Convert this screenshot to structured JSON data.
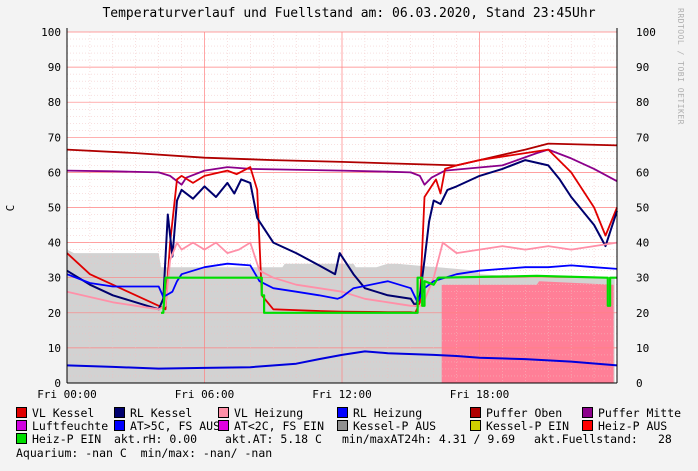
{
  "title": "Temperaturverlauf und Fuellstand am: 06.03.2020, Stand 23:45Uhr",
  "watermark": "RRDTOOL / TOBI OETIKER",
  "legend": [
    {
      "label": "VL Kessel",
      "color": "#e00000"
    },
    {
      "label": "RL Kessel",
      "color": "#00006e"
    },
    {
      "label": "VL Heizung",
      "color": "#ff90a8"
    },
    {
      "label": "RL Heizung",
      "color": "#0000ff"
    },
    {
      "label": "Puffer Oben",
      "color": "#b00000"
    },
    {
      "label": "Puffer Mitte",
      "color": "#8b008b"
    },
    {
      "label": "Luftfeuchte",
      "color": "#d000e0"
    },
    {
      "label": "AT>5C, FS AUS",
      "color": "#0000ff"
    },
    {
      "label": "AT<2C, FS EIN",
      "color": "#e000e0"
    },
    {
      "label": "Kessel-P AUS",
      "color": "#909090"
    },
    {
      "label": "Kessel-P EIN",
      "color": "#d0d000"
    },
    {
      "label": "Heiz-P AUS",
      "color": "#ff0000"
    },
    {
      "label": "Heiz-P EIN",
      "color": "#00dd00"
    }
  ],
  "stats": {
    "rh": "akt.rH: 0.00",
    "at": "akt.AT: 5.18 C",
    "minmax": "min/maxAT24h: 4.31 / 9.69",
    "fuell_label": "akt.Fuellstand:",
    "fuell_value": "28",
    "aquarium": "Aquarium: -nan C  min/max: -nan/ -nan"
  },
  "chart_data": {
    "type": "line",
    "title": "Temperaturverlauf und Fuellstand am: 06.03.2020, Stand 23:45Uhr",
    "ylabel": "C",
    "xlim_hours": [
      0,
      24
    ],
    "ylim": [
      0,
      100
    ],
    "y_ticks": [
      0,
      10,
      20,
      30,
      40,
      50,
      60,
      70,
      80,
      90,
      100
    ],
    "x_ticks": [
      {
        "h": 0,
        "label": "Fri 00:00"
      },
      {
        "h": 6,
        "label": "Fri 06:00"
      },
      {
        "h": 12,
        "label": "Fri 12:00"
      },
      {
        "h": 18,
        "label": "Fri 18:00"
      }
    ],
    "grid": true,
    "background_areas": [
      {
        "name": "Kessel-P AUS",
        "color": "#d2d2d2",
        "x": [
          0,
          0.3,
          4,
          4.1,
          9.4,
          9.5,
          12.5,
          12.6,
          13.5,
          14,
          14.4,
          16.1,
          16.2,
          17.9,
          18,
          20.5,
          23.9
        ],
        "y": [
          38,
          37,
          37,
          33,
          33,
          34,
          34,
          33,
          33,
          34,
          34,
          33,
          33,
          32,
          31,
          30,
          30
        ]
      },
      {
        "name": "Heiz-P AUS",
        "color": "#ff7f97",
        "x": [
          16.35,
          20.5,
          20.6,
          23.85
        ],
        "y": [
          28,
          28,
          29,
          28
        ]
      }
    ],
    "series": [
      {
        "name": "Puffer Oben",
        "color": "#b00000",
        "width": 1.8,
        "x": [
          0,
          3,
          6,
          9,
          12,
          15,
          17,
          18,
          20,
          21,
          24
        ],
        "y": [
          66.5,
          65.5,
          64.2,
          63.5,
          63,
          62.4,
          62,
          63.5,
          66.5,
          68.2,
          67.7
        ]
      },
      {
        "name": "Puffer Mitte",
        "color": "#8b008b",
        "width": 1.8,
        "x": [
          0,
          2,
          4,
          4.5,
          5,
          5.2,
          6,
          7,
          8,
          12,
          14,
          15,
          15.4,
          15.6,
          15.9,
          16.5,
          19,
          20.5,
          21,
          22,
          23,
          24
        ],
        "y": [
          60.5,
          60.3,
          60,
          59,
          56.5,
          58.5,
          60.5,
          61.5,
          61,
          60.5,
          60.2,
          60,
          59,
          56.5,
          58.5,
          60.5,
          62,
          65.5,
          66.5,
          64,
          61,
          57.5
        ]
      },
      {
        "name": "VL Kessel",
        "color": "#e00000",
        "width": 1.8,
        "x": [
          0,
          0.5,
          1,
          2,
          3,
          4,
          4.3,
          4.5,
          4.8,
          5,
          5.5,
          6,
          7,
          7.4,
          8,
          8.3,
          8.5,
          9,
          11,
          12,
          14,
          15,
          15.2,
          15.4,
          15.6,
          15.9,
          16.1,
          16.3,
          16.5,
          17,
          18,
          19,
          20,
          21,
          22,
          23,
          23.5,
          24
        ],
        "y": [
          37,
          34,
          31,
          28,
          25,
          22,
          21,
          40,
          58,
          59,
          57,
          59,
          60.5,
          59.5,
          61.5,
          55,
          25,
          21,
          20.5,
          20.3,
          20.2,
          20.2,
          20,
          23,
          53,
          56,
          58,
          54,
          61,
          62,
          63.5,
          64.5,
          65.5,
          66.5,
          60,
          50,
          42,
          50
        ]
      },
      {
        "name": "RL Kessel",
        "color": "#00006e",
        "width": 2.0,
        "x": [
          0,
          0.5,
          1,
          2,
          3,
          4,
          4.2,
          4.4,
          4.6,
          4.8,
          5,
          5.5,
          6,
          6.5,
          7,
          7.3,
          7.6,
          8,
          8.3,
          8.6,
          9,
          10,
          11,
          11.7,
          11.9,
          12.5,
          13,
          14,
          15,
          15.2,
          15.4,
          15.6,
          15.8,
          16,
          16.3,
          16.6,
          17,
          18,
          19,
          20,
          21,
          21.5,
          22,
          23,
          23.5,
          24
        ],
        "y": [
          32,
          30,
          28,
          25,
          23,
          21,
          24,
          48,
          36,
          52,
          55,
          52.5,
          56,
          53,
          57,
          54,
          58,
          57,
          47,
          44,
          40,
          37,
          33.5,
          31,
          37,
          31,
          27,
          25,
          24,
          22,
          25,
          35,
          46,
          52,
          51,
          55,
          56,
          59,
          61,
          63.5,
          62,
          58,
          53,
          45,
          39,
          49
        ]
      },
      {
        "name": "VL Heizung",
        "color": "#ff90a8",
        "width": 1.8,
        "x": [
          0,
          1,
          2,
          3,
          4,
          4.3,
          4.5,
          4.8,
          5,
          5.5,
          6,
          6.5,
          7,
          7.5,
          8,
          8.4,
          9,
          10,
          11,
          12,
          13,
          14,
          15,
          15.5,
          16,
          16.4,
          16.8,
          17,
          18,
          19,
          20,
          21,
          22,
          23,
          24
        ],
        "y": [
          26,
          24.5,
          23,
          22,
          21,
          22,
          35,
          40,
          38,
          40,
          38,
          40,
          37,
          38,
          40,
          32,
          30,
          28,
          27,
          26,
          24,
          23,
          22,
          22,
          30,
          40,
          38,
          37,
          38,
          39,
          38,
          39,
          38,
          39,
          40
        ]
      },
      {
        "name": "RL Heizung",
        "color": "#0000ff",
        "width": 1.8,
        "x": [
          0,
          1,
          2,
          3,
          4,
          4.2,
          4.6,
          4.8,
          5,
          6,
          7,
          8,
          8.4,
          9,
          10,
          11,
          11.8,
          12,
          12.5,
          14,
          15,
          15.3,
          15.6,
          16,
          17,
          18,
          19,
          20,
          21,
          22,
          23,
          24
        ],
        "y": [
          31,
          28.5,
          27.5,
          27.5,
          27.5,
          24.5,
          26,
          29,
          31,
          33,
          34,
          33.5,
          29,
          27,
          26,
          25,
          24,
          24.5,
          27,
          29,
          27,
          23,
          27,
          29,
          31,
          32,
          32.5,
          33,
          33,
          33.5,
          33,
          32.5
        ]
      },
      {
        "name": "Luftfeuchte",
        "color": "#0000dd",
        "width": 2.0,
        "x": [
          0,
          2,
          4,
          6,
          8,
          10,
          11,
          12,
          13,
          14,
          16,
          17,
          18,
          20,
          22,
          24
        ],
        "y": [
          5,
          4.6,
          4.1,
          4.3,
          4.5,
          5.5,
          6.8,
          8,
          9,
          8.5,
          8,
          7.7,
          7.2,
          6.8,
          6.1,
          5
        ]
      },
      {
        "name": "Heiz-P EIN",
        "color": "#00dd00",
        "width": 2.2,
        "x": [
          4.1,
          4.2,
          4.3,
          4.3,
          8.5,
          8.5,
          8.6,
          8.6,
          15.2,
          15.3,
          15.3,
          15.5,
          15.5,
          15.6,
          15.6,
          16,
          16.2,
          20.5,
          23.5,
          23.6,
          23.6,
          23.7,
          23.7,
          24
        ],
        "y": [
          20,
          20,
          30,
          30,
          30,
          25,
          25,
          20,
          20,
          20,
          30,
          30,
          22,
          22,
          29,
          28,
          30,
          30.5,
          30,
          30,
          22,
          22,
          30,
          30
        ]
      }
    ]
  }
}
